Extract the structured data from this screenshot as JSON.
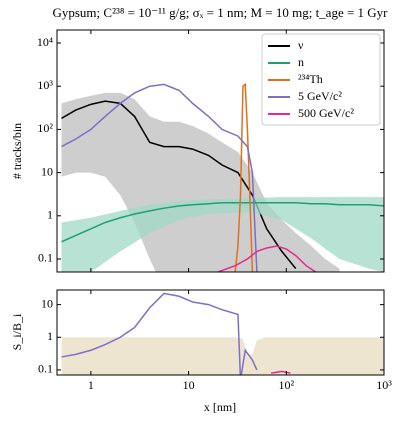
{
  "chart_data": [
    {
      "type": "line",
      "title": "Gypsum; C²³⁸ = 10⁻¹¹ g/g; σₓ = 1 nm; M = 10 mg; t_age = 1 Gyr",
      "y_label": "# tracks/bin",
      "log_x": true,
      "log_y": true,
      "legend": "upper right",
      "xlim": [
        0.45,
        1000
      ],
      "ylim": [
        0.05,
        20000
      ],
      "yticks": [
        {
          "value": 10000,
          "label": "10⁴"
        },
        {
          "value": 1000,
          "label": "10³"
        },
        {
          "value": 100,
          "label": "10²"
        },
        10,
        1,
        0.1
      ],
      "series": [
        {
          "name": "ν",
          "color": "#000000",
          "x": [
            0.5,
            0.7,
            1,
            1.4,
            2,
            2.8,
            4,
            5.6,
            8,
            11,
            16,
            22,
            32,
            45,
            63,
            90,
            125
          ],
          "values": [
            180,
            280,
            380,
            450,
            400,
            200,
            50,
            40,
            40,
            35,
            25,
            15,
            10,
            3,
            0.5,
            0.15,
            0.06
          ],
          "band": {
            "color": "#bdbdbd",
            "x": [
              0.5,
              0.7,
              1,
              1.4,
              2,
              2.8,
              4,
              5.6,
              8,
              11,
              16,
              22,
              32,
              45,
              63,
              90,
              125,
              180,
              250,
              350
            ],
            "upper": [
              400,
              500,
              600,
              700,
              700,
              500,
              200,
              150,
              150,
              120,
              80,
              50,
              30,
              10,
              2,
              0.8,
              0.4,
              0.2,
              0.1,
              0.06
            ],
            "lower": [
              8,
              10,
              10,
              8,
              3,
              0.7,
              0.1,
              0.02,
              0.02,
              0.02,
              0.02,
              0.02,
              0.02,
              0.02,
              0.02,
              0.02,
              0.02,
              0.02,
              0.02,
              0.02
            ]
          }
        },
        {
          "name": "n",
          "color": "#1f9e77",
          "x": [
            0.5,
            0.7,
            1,
            1.4,
            2,
            2.8,
            4,
            5.6,
            8,
            11,
            16,
            22,
            32,
            45,
            63,
            90,
            125,
            180,
            250,
            350,
            500,
            700,
            1000
          ],
          "values": [
            0.25,
            0.35,
            0.5,
            0.7,
            0.9,
            1.1,
            1.3,
            1.5,
            1.7,
            1.8,
            1.9,
            2,
            2,
            2,
            2,
            2,
            2,
            1.9,
            1.9,
            1.8,
            1.8,
            1.8,
            1.7
          ],
          "band": {
            "color": "#9fd8c6",
            "x": [
              0.5,
              1,
              2,
              4,
              8,
              16,
              32,
              45,
              90,
              180,
              350,
              700,
              1000
            ],
            "upper": [
              0.7,
              0.9,
              1.3,
              1.8,
              2.2,
              2.4,
              2.5,
              2.6,
              2.7,
              2.7,
              2.7,
              2.7,
              2.7
            ],
            "lower": [
              0.02,
              0.05,
              0.15,
              0.4,
              0.8,
              1.1,
              1.2,
              1.2,
              0.8,
              0.3,
              0.1,
              0.06,
              0.05
            ]
          }
        },
        {
          "name": "²³⁴Th",
          "color": "#e0711c",
          "x": [
            30,
            32,
            34,
            36,
            38,
            40,
            42,
            45
          ],
          "values": [
            0.05,
            0.2,
            3,
            1000,
            1100,
            100,
            5,
            0.05
          ]
        },
        {
          "name": "5 GeV/c²",
          "color": "#7b6fc8",
          "x": [
            0.5,
            0.7,
            1,
            1.4,
            2,
            2.8,
            4,
            5.6,
            8,
            11,
            16,
            22,
            32,
            40,
            45,
            50
          ],
          "values": [
            40,
            60,
            100,
            200,
            400,
            700,
            1000,
            1100,
            800,
            400,
            200,
            100,
            70,
            40,
            10,
            0.05
          ]
        },
        {
          "name": "500 GeV/c²",
          "color": "#e7298a",
          "x": [
            20,
            30,
            40,
            50,
            63,
            80,
            100,
            125,
            160,
            200
          ],
          "values": [
            0.05,
            0.07,
            0.1,
            0.15,
            0.18,
            0.2,
            0.17,
            0.12,
            0.07,
            0.05
          ]
        }
      ]
    },
    {
      "type": "line",
      "y_label": "S_i/B_i",
      "x_label": "x [nm]",
      "log_x": true,
      "log_y": true,
      "xlim": [
        0.45,
        1000
      ],
      "ylim": [
        0.07,
        28
      ],
      "xticks": [
        1,
        10,
        {
          "value": 100,
          "label": "10²"
        },
        {
          "value": 1000,
          "label": "10³"
        }
      ],
      "yticks": [
        10,
        1,
        0.1
      ],
      "series": [
        {
          "color": "#7b6fc8",
          "x": [
            0.5,
            0.7,
            1,
            1.4,
            2,
            2.8,
            4,
            5.6,
            8,
            11,
            16,
            22,
            32,
            34,
            38,
            45,
            50
          ],
          "values": [
            0.25,
            0.3,
            0.4,
            0.6,
            1,
            2,
            8,
            22,
            18,
            12,
            10,
            7,
            5,
            0.05,
            0.4,
            0.2,
            0.1
          ],
          "band": {
            "color": "#e8dcc0",
            "x": [
              0.5,
              2,
              10,
              30,
              36,
              40,
              45,
              50,
              60,
              80,
              100,
              200,
              1000
            ],
            "upper": [
              1,
              1,
              1,
              1,
              0.9,
              0.3,
              0.3,
              0.8,
              1,
              1,
              1,
              1,
              1
            ],
            "lower": [
              0.05,
              0.05,
              0.05,
              0.05,
              0.05,
              0.05,
              0.05,
              0.05,
              0.05,
              0.05,
              0.05,
              0.05,
              0.05
            ]
          }
        },
        {
          "color": "#e7298a",
          "x": [
            70,
            90,
            110
          ],
          "values": [
            0.08,
            0.09,
            0.08
          ]
        }
      ]
    }
  ]
}
